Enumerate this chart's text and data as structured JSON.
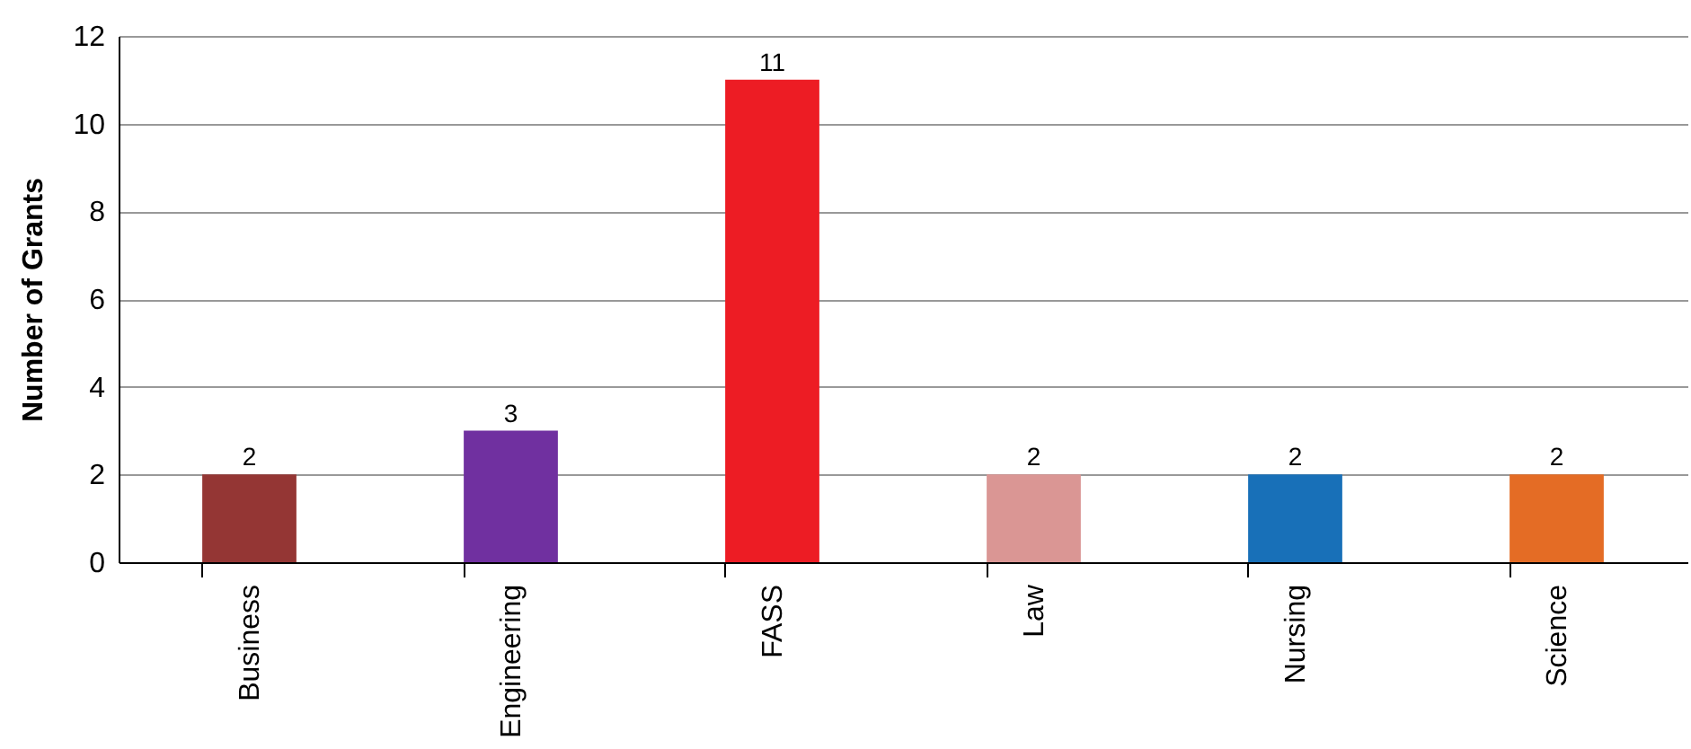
{
  "chart_data": {
    "type": "bar",
    "ylabel": "Number of Grants",
    "categories": [
      "Business",
      "Engineering",
      "FASS",
      "Law",
      "Nursing",
      "Science"
    ],
    "values": [
      2,
      3,
      11,
      2,
      2,
      2
    ],
    "colors": [
      "#943634",
      "#7030a0",
      "#ed1c24",
      "#da9694",
      "#1870b8",
      "#e46c25"
    ],
    "ylim": [
      0,
      12
    ],
    "yticks": [
      0,
      2,
      4,
      6,
      8,
      10,
      12
    ],
    "grid": "y",
    "data_labels": true
  }
}
